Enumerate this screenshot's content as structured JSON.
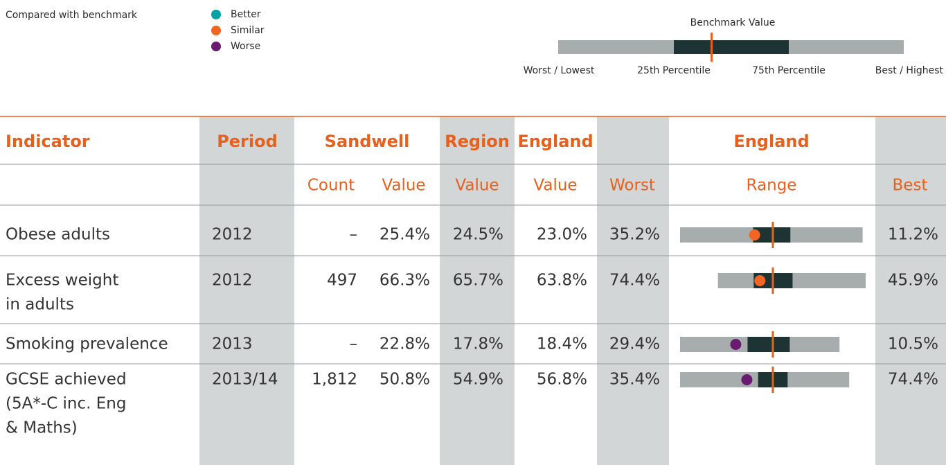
{
  "legend": {
    "title": "Compared with benchmark",
    "items": [
      {
        "label": "Better",
        "color": "#00a3a3"
      },
      {
        "label": "Similar",
        "color": "#f26522"
      },
      {
        "label": "Worse",
        "color": "#6a1b6f"
      }
    ]
  },
  "key": {
    "title": "Benchmark Value",
    "labels": [
      "Worst / Lowest",
      "25th Percentile",
      "75th Percentile",
      "Best / Highest"
    ]
  },
  "table": {
    "headers": [
      "Indicator",
      "Period",
      "Sandwell",
      "Region",
      "England",
      "England"
    ],
    "subheaders": [
      "Count",
      "Value",
      "Value",
      "Value",
      "Worst",
      "Range",
      "Best"
    ],
    "rows": [
      {
        "indicator": [
          "Obese adults"
        ],
        "period": "2012",
        "count": "–",
        "value": "25.4%",
        "region": "24.5%",
        "england": "23.0%",
        "worst": "35.2%",
        "best": "11.2%",
        "percentile_25": 25.6,
        "percentile_75": 20.7,
        "color": "#f26522"
      },
      {
        "indicator": [
          "Excess weight",
          "in adults"
        ],
        "period": "2012",
        "count": "497",
        "value": "66.3%",
        "region": "65.7%",
        "england": "63.8%",
        "worst": "74.4%",
        "best": "45.9%",
        "percentile_25": 67.5,
        "percentile_75": 60.0,
        "color": "#f26522"
      },
      {
        "indicator": [
          "Smoking prevalence"
        ],
        "period": "2013",
        "count": "–",
        "value": "22.8%",
        "region": "17.8%",
        "england": "18.4%",
        "worst": "29.4%",
        "best": "10.5%",
        "percentile_25": 21.4,
        "percentile_75": 16.4,
        "color": "#6a1b6f"
      },
      {
        "indicator": [
          "GCSE achieved",
          "(5A*-C inc. Eng",
          "& Maths)"
        ],
        "period": "2013/14",
        "count": "1,812",
        "value": "50.8%",
        "region": "54.9%",
        "england": "56.8%",
        "worst": "35.4%",
        "best": "74.4%",
        "percentile_25": 53.4,
        "percentile_75": 60.2,
        "color": "#6a1b6f"
      }
    ]
  }
}
